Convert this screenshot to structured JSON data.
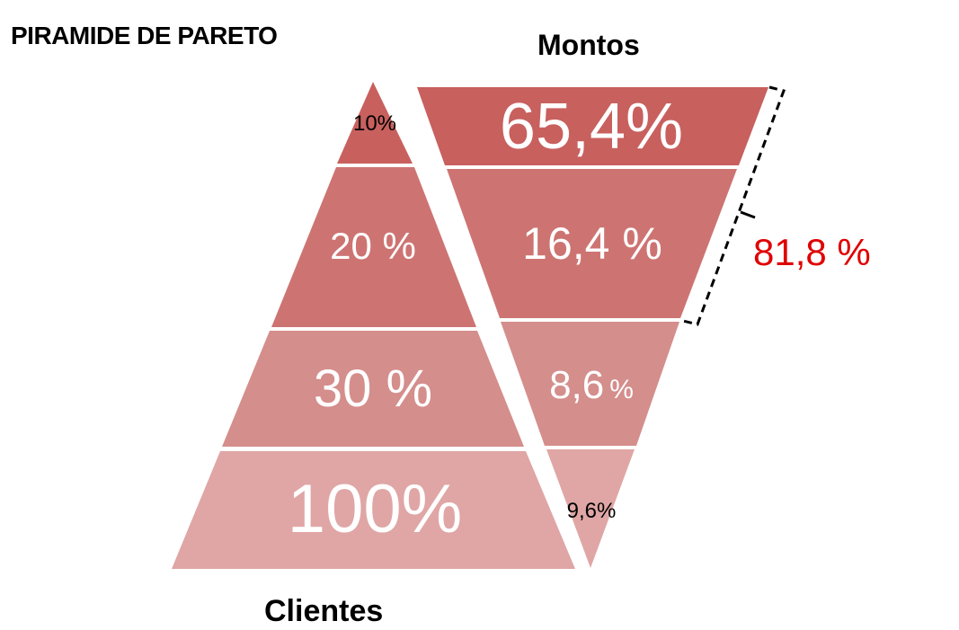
{
  "title": "PIRAMIDE DE PARETO",
  "left_pyramid": {
    "label": "Clientes",
    "levels": [
      {
        "text": "10%",
        "value": 10,
        "color": "#c8605e",
        "text_color": "#000000"
      },
      {
        "text": "20 %",
        "value": 20,
        "color": "#cd7472",
        "text_color": "#ffffff"
      },
      {
        "text": "30 %",
        "value": 30,
        "color": "#d48e8c",
        "text_color": "#ffffff"
      },
      {
        "text": "100%",
        "value": 100,
        "color": "#dfa6a5",
        "text_color": "#ffffff"
      }
    ]
  },
  "right_pyramid": {
    "label": "Montos",
    "levels": [
      {
        "text": "65,4%",
        "value": 65.4,
        "color": "#c8605e",
        "text_color": "#ffffff"
      },
      {
        "text": "16,4 %",
        "value": 16.4,
        "color": "#cd7472",
        "text_color": "#ffffff"
      },
      {
        "text": "8,6",
        "unit": "%",
        "value": 8.6,
        "color": "#d48e8c",
        "text_color": "#ffffff"
      },
      {
        "text": "9,6%",
        "value": 9.6,
        "color": "#dfa6a5",
        "text_color": "#000000"
      }
    ]
  },
  "bracket": {
    "text": "81,8 %",
    "value": 81.8,
    "color": "#e00000"
  }
}
